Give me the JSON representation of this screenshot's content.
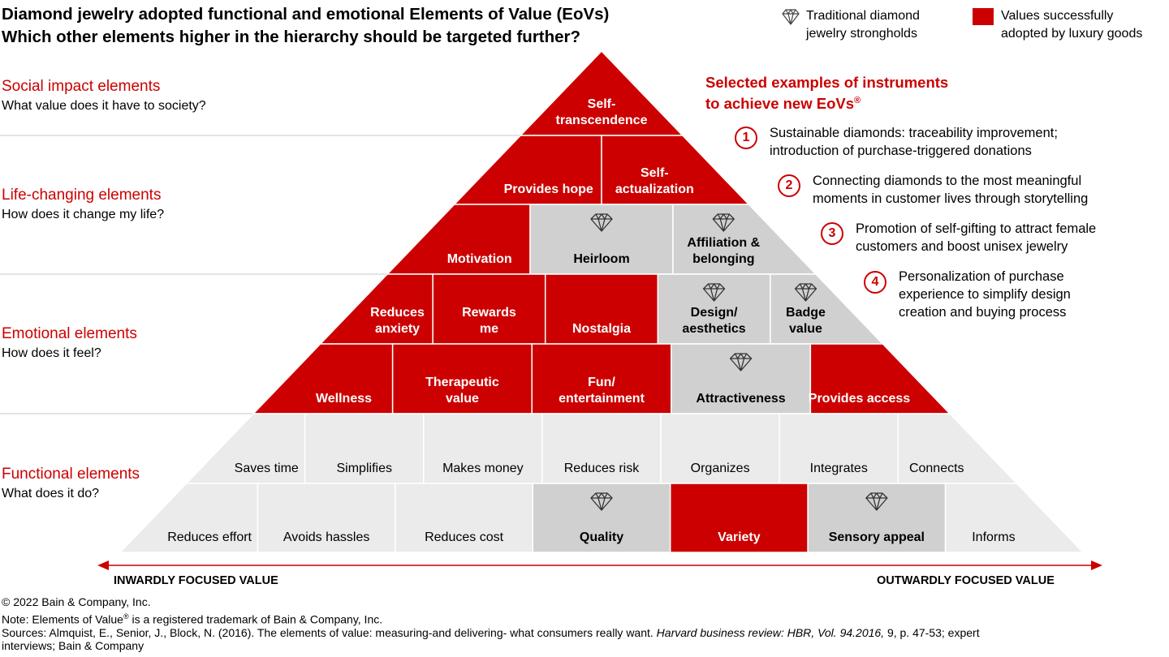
{
  "title": {
    "line1": "Diamond jewelry adopted functional and emotional Elements of Value (EoVs)",
    "line2": "Which other elements higher in the hierarchy should be targeted further?"
  },
  "legend": {
    "traditional": {
      "icon": "diamond-icon",
      "text_line1": "Traditional diamond",
      "text_line2": "jewelry strongholds"
    },
    "adopted": {
      "color": "#cc0000",
      "text_line1": "Values successfully",
      "text_line2": "adopted by luxury goods"
    }
  },
  "tiers": [
    {
      "name": "Social impact elements",
      "question": "What value does it have to society?"
    },
    {
      "name": "Life-changing elements",
      "question": "How does it change my life?"
    },
    {
      "name": "Emotional elements",
      "question": "How does it feel?"
    },
    {
      "name": "Functional elements",
      "question": "What does it do?"
    }
  ],
  "colors": {
    "adopted": "#cc0000",
    "stronghold": "#d0d0d0",
    "other": "#ebebeb",
    "divider": "#ffffff"
  },
  "pyramid_rows": [
    [
      {
        "label": [
          "Self-",
          "transcendence"
        ],
        "status": "adopted"
      }
    ],
    [
      {
        "label": [
          "Provides hope"
        ],
        "status": "adopted"
      },
      {
        "label": [
          "Self-",
          "actualization"
        ],
        "status": "adopted"
      }
    ],
    [
      {
        "label": [
          "Motivation"
        ],
        "status": "adopted"
      },
      {
        "label": [
          "Heirloom"
        ],
        "status": "stronghold",
        "icon": "diamond-icon"
      },
      {
        "label": [
          "Affiliation &",
          "belonging"
        ],
        "status": "stronghold",
        "icon": "diamond-icon"
      }
    ],
    [
      {
        "label": [
          "Reduces",
          "anxiety"
        ],
        "status": "adopted"
      },
      {
        "label": [
          "Rewards",
          "me"
        ],
        "status": "adopted"
      },
      {
        "label": [
          "Nostalgia"
        ],
        "status": "adopted"
      },
      {
        "label": [
          "Design/",
          "aesthetics"
        ],
        "status": "stronghold",
        "icon": "diamond-icon"
      },
      {
        "label": [
          "Badge",
          "value"
        ],
        "status": "stronghold",
        "icon": "diamond-icon"
      }
    ],
    [
      {
        "label": [
          "Wellness"
        ],
        "status": "adopted"
      },
      {
        "label": [
          "Therapeutic",
          "value"
        ],
        "status": "adopted"
      },
      {
        "label": [
          "Fun/",
          "entertainment"
        ],
        "status": "adopted"
      },
      {
        "label": [
          "Attractiveness"
        ],
        "status": "stronghold",
        "icon": "diamond-icon"
      },
      {
        "label": [
          "Provides access"
        ],
        "status": "adopted"
      }
    ],
    [
      {
        "label": [
          "Saves time"
        ],
        "status": "other"
      },
      {
        "label": [
          "Simplifies"
        ],
        "status": "other"
      },
      {
        "label": [
          "Makes money"
        ],
        "status": "other"
      },
      {
        "label": [
          "Reduces risk"
        ],
        "status": "other"
      },
      {
        "label": [
          "Organizes"
        ],
        "status": "other"
      },
      {
        "label": [
          "Integrates"
        ],
        "status": "other"
      },
      {
        "label": [
          "Connects"
        ],
        "status": "other"
      }
    ],
    [
      {
        "label": [
          "Reduces effort"
        ],
        "status": "other"
      },
      {
        "label": [
          "Avoids hassles"
        ],
        "status": "other"
      },
      {
        "label": [
          "Reduces cost"
        ],
        "status": "other"
      },
      {
        "label": [
          "Quality"
        ],
        "status": "stronghold",
        "icon": "diamond-icon"
      },
      {
        "label": [
          "Variety"
        ],
        "status": "adopted"
      },
      {
        "label": [
          "Sensory appeal"
        ],
        "status": "stronghold",
        "icon": "diamond-icon"
      },
      {
        "label": [
          "Informs"
        ],
        "status": "other"
      }
    ]
  ],
  "examples": {
    "title_line1": "Selected examples of instruments",
    "title_line2": "to achieve new EoVs",
    "title_mark": "®",
    "items": [
      {
        "num": "1",
        "line1": "Sustainable diamonds: traceability improvement;",
        "line2": "introduction of purchase-triggered donations"
      },
      {
        "num": "2",
        "line1": "Connecting diamonds to the most meaningful",
        "line2": "moments in customer lives through storytelling"
      },
      {
        "num": "3",
        "line1": "Promotion of self-gifting to attract female",
        "line2": "customers and boost unisex jewelry"
      },
      {
        "num": "4",
        "line1": "Personalization of purchase",
        "line2": "experience to simplify design",
        "line3": "creation and buying process"
      }
    ]
  },
  "axis": {
    "left": "INWARDLY FOCUSED VALUE",
    "right": "OUTWARDLY FOCUSED VALUE"
  },
  "footer": {
    "copyright": "© 2022 Bain & Company, Inc.",
    "note_pre": "Note: Elements of Value",
    "note_mark": "®",
    "note_post": " is a registered trademark of Bain & Company, Inc.",
    "sources_pre": "Sources: Almquist, E., Senior, J., Block, N. (2016). The elements of value: measuring-and delivering- what consumers really want. ",
    "sources_journal": "Harvard business review: HBR, Vol. 94.2016,",
    "sources_post": " 9, p. 47-53; expert",
    "sources_line2": "interviews; Bain & Company"
  }
}
